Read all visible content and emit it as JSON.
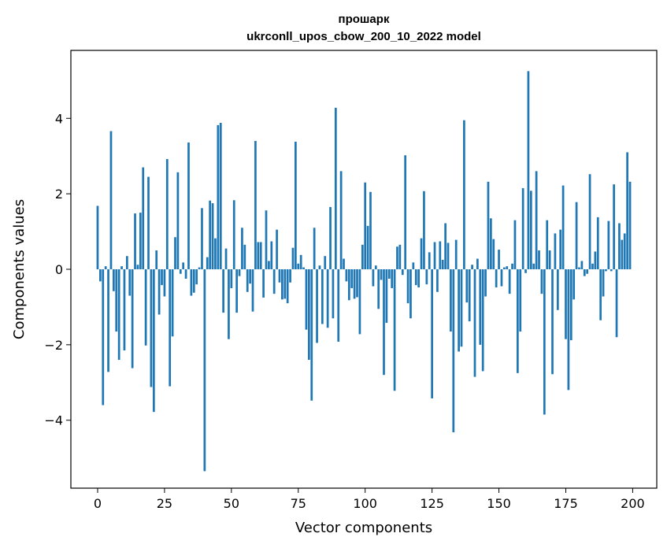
{
  "chart_data": {
    "type": "bar",
    "title": "прошарк",
    "subtitle": "ukrconll_upos_cbow_200_10_2022 model",
    "xlabel": "Vector components",
    "ylabel": "Components values",
    "xlim": [
      -10,
      209
    ],
    "ylim": [
      -5.8,
      5.8
    ],
    "xticks": [
      0,
      25,
      50,
      75,
      100,
      125,
      150,
      175,
      200
    ],
    "xtick_labels": [
      "0",
      "25",
      "50",
      "75",
      "100",
      "125",
      "150",
      "175",
      "200"
    ],
    "yticks": [
      -4,
      -2,
      0,
      2,
      4
    ],
    "ytick_labels": [
      "−4",
      "−2",
      "0",
      "2",
      "4"
    ],
    "grid": false,
    "legend": "none",
    "bar_color": "#1f77b4",
    "values": [
      1.68,
      -0.32,
      -3.6,
      0.08,
      -2.72,
      3.66,
      -0.58,
      -1.65,
      -2.4,
      0.08,
      -2.15,
      0.35,
      -0.7,
      -2.62,
      1.48,
      0.12,
      1.5,
      2.7,
      -2.02,
      2.45,
      -3.12,
      -3.78,
      0.5,
      -1.2,
      -0.42,
      -0.72,
      2.92,
      -3.1,
      -1.78,
      0.85,
      2.57,
      -0.12,
      0.18,
      -0.25,
      3.36,
      -0.7,
      -0.62,
      -0.4,
      0.05,
      1.62,
      -5.35,
      0.32,
      1.82,
      1.75,
      0.82,
      3.82,
      3.88,
      -1.15,
      0.55,
      -1.85,
      -0.5,
      1.83,
      -1.15,
      -0.18,
      1.1,
      0.65,
      -0.6,
      -0.38,
      -1.12,
      3.4,
      0.72,
      0.72,
      -0.75,
      1.56,
      0.22,
      0.74,
      -0.65,
      1.05,
      -0.35,
      -0.8,
      -0.78,
      -0.9,
      -0.35,
      0.57,
      3.38,
      0.15,
      0.38,
      0.05,
      -1.6,
      -2.4,
      -3.48,
      1.1,
      -1.95,
      0.1,
      -1.45,
      0.35,
      -1.55,
      1.65,
      -1.3,
      4.28,
      -1.92,
      2.6,
      0.28,
      -0.32,
      -0.82,
      -0.5,
      -0.78,
      -0.74,
      -1.72,
      0.65,
      2.3,
      1.15,
      2.05,
      -0.45,
      0.1,
      -1.05,
      -0.28,
      -2.8,
      -1.42,
      -0.25,
      -0.5,
      -3.22,
      0.6,
      0.65,
      -0.15,
      3.02,
      -0.9,
      -1.3,
      0.18,
      -0.42,
      -0.48,
      0.82,
      2.07,
      -0.4,
      0.45,
      -3.42,
      0.72,
      -0.6,
      0.74,
      0.25,
      1.22,
      0.7,
      -1.65,
      -4.32,
      0.78,
      -2.18,
      -2.05,
      3.95,
      -0.88,
      -1.38,
      0.12,
      -2.85,
      0.28,
      -2.0,
      -2.7,
      -0.72,
      2.32,
      1.35,
      0.8,
      -0.48,
      0.52,
      -0.45,
      0.05,
      0.08,
      -0.65,
      0.15,
      1.3,
      -2.75,
      -1.65,
      2.15,
      -0.1,
      5.25,
      2.08,
      0.15,
      2.6,
      0.5,
      -0.65,
      -3.85,
      1.3,
      0.5,
      -2.78,
      0.95,
      -1.08,
      1.05,
      2.22,
      -1.85,
      -3.2,
      -1.88,
      -0.8,
      1.78,
      0.05,
      0.22,
      -0.18,
      -0.12,
      2.52,
      0.15,
      0.47,
      1.38,
      -1.35,
      -0.72,
      -0.05,
      1.28,
      -0.05,
      2.25,
      -1.8,
      1.22,
      0.78,
      0.95,
      3.1,
      2.32
    ]
  }
}
